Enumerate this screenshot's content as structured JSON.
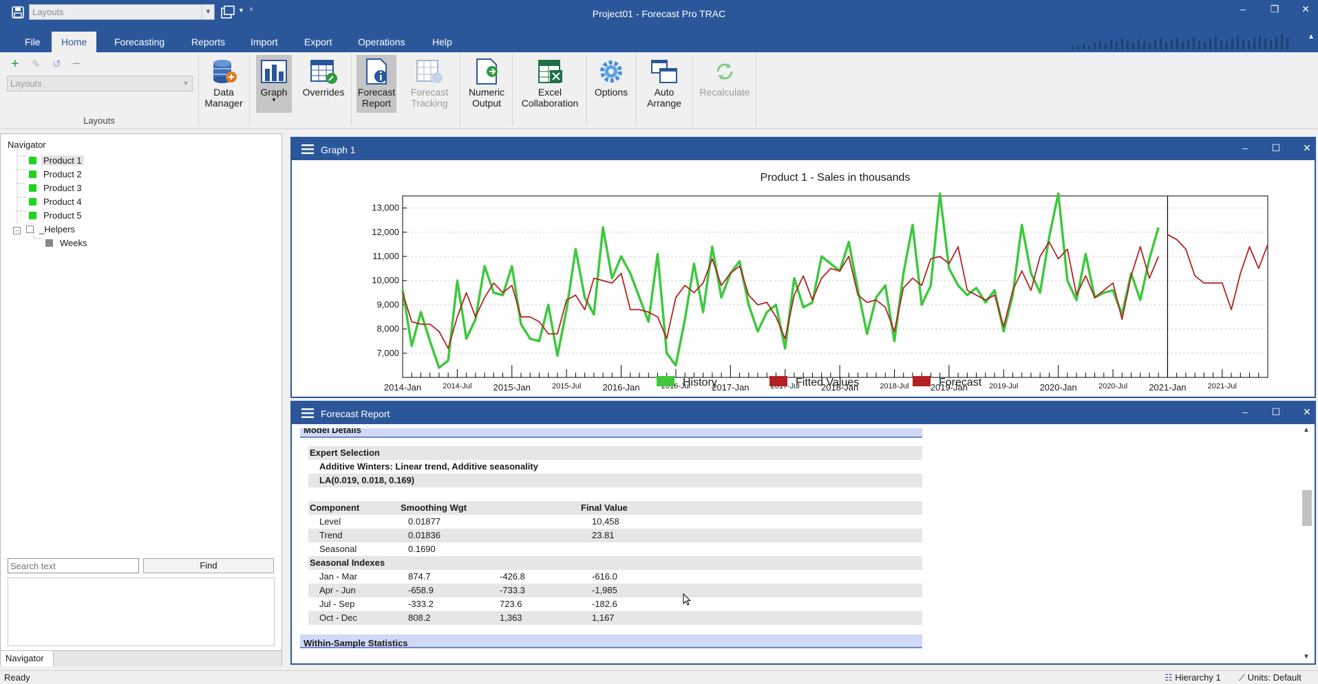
{
  "window": {
    "title": "Project01 - Forecast Pro TRAC",
    "layout_combo": "Layouts"
  },
  "menu": {
    "tabs": [
      "File",
      "Home",
      "Forecasting",
      "Reports",
      "Import",
      "Export",
      "Operations",
      "Help"
    ],
    "active": "Home"
  },
  "ribbon": {
    "layouts_combo_placeholder": "Layouts",
    "layouts_group_label": "Layouts",
    "buttons": {
      "data_manager": "Data\nManager",
      "graph": "Graph",
      "overrides": "Overrides",
      "forecast_report": "Forecast\nReport",
      "forecast_tracking": "Forecast\nTracking",
      "numeric_output": "Numeric\nOutput",
      "excel_collaboration": "Excel\nCollaboration",
      "options": "Options",
      "auto_arrange": "Auto\nArrange",
      "recalculate": "Recalculate"
    }
  },
  "navigator": {
    "title": "Navigator",
    "items": [
      {
        "label": "Product 1",
        "color": "#1fd41f",
        "selected": true
      },
      {
        "label": "Product 2",
        "color": "#1fd41f"
      },
      {
        "label": "Product 3",
        "color": "#1fd41f"
      },
      {
        "label": "Product 4",
        "color": "#1fd41f"
      },
      {
        "label": "Product 5",
        "color": "#1fd41f"
      },
      {
        "label": "_Helpers",
        "color": "#888888"
      },
      {
        "label": "Weeks",
        "color": "#888888"
      }
    ],
    "search_placeholder": "Search text",
    "find_label": "Find",
    "tab_label": "Navigator"
  },
  "graph_panel": {
    "title": "Graph 1"
  },
  "chart_data": {
    "type": "line",
    "title": "Product 1 - Sales in thousands",
    "ylim": [
      6000,
      13500
    ],
    "y_ticks": [
      "13,000",
      "12,000",
      "11,000",
      "10,000",
      "9,000",
      "8,000",
      "7,000"
    ],
    "y_tick_values": [
      13000,
      12000,
      11000,
      10000,
      9000,
      8000,
      7000
    ],
    "x_major_labels": [
      "2014-Jan",
      "2015-Jan",
      "2016-Jan",
      "2017-Jan",
      "2018-Jan",
      "2019-Jan",
      "2020-Jan",
      "2021-Jan"
    ],
    "x_minor_labels": [
      "2014-Jul",
      "2015-Jul",
      "2016-Jul",
      "2017-Jul",
      "2018-Jul",
      "2019-Jul",
      "2020-Jul",
      "2021-Jul"
    ],
    "x_start": "2014-Jan",
    "x_end": "2021-Sep",
    "forecast_start": "2021-Jan",
    "grid": true,
    "legend": "bottom",
    "colors": {
      "history": "#3ec83e",
      "fitted": "#b22222",
      "forecast": "#b22222"
    },
    "series": [
      {
        "name": "History",
        "values": [
          9600,
          7300,
          8700,
          7500,
          6400,
          6700,
          10000,
          7600,
          8400,
          10600,
          9500,
          9400,
          10600,
          8200,
          7600,
          7500,
          9000,
          6900,
          8800,
          11300,
          9300,
          8600,
          12200,
          10100,
          11000,
          10300,
          9300,
          8300,
          11100,
          7000,
          6500,
          8400,
          10700,
          8700,
          11400,
          9300,
          10300,
          10800,
          9000,
          7900,
          8700,
          9000,
          7200,
          10100,
          8900,
          9100,
          11000,
          10700,
          10400,
          11600,
          9600,
          7800,
          9300,
          9800,
          7500,
          10300,
          12300,
          9000,
          9800,
          13600,
          10500,
          9800,
          9400,
          9700,
          9100,
          9600,
          7900,
          9400,
          12300,
          10300,
          9500,
          11800,
          13600,
          10000,
          9200,
          11100,
          9300,
          9500,
          9600,
          8600,
          10300,
          9200,
          10900,
          12200
        ]
      },
      {
        "name": "Fitted Values",
        "values": [
          9500,
          8300,
          8200,
          8200,
          7900,
          7200,
          8500,
          9500,
          8500,
          9300,
          9900,
          9500,
          9800,
          8500,
          8500,
          8300,
          7800,
          7800,
          9200,
          9400,
          8800,
          10100,
          10000,
          9900,
          10300,
          8800,
          8800,
          8700,
          8500,
          7600,
          9300,
          9800,
          9500,
          9900,
          10900,
          9800,
          10300,
          10600,
          9400,
          9000,
          9100,
          8500,
          7600,
          9400,
          10200,
          9200,
          10100,
          10500,
          10400,
          11000,
          9400,
          9100,
          9200,
          8900,
          7900,
          9700,
          10100,
          9800,
          10900,
          11000,
          10700,
          11400,
          9600,
          9400,
          9200,
          9400,
          8100,
          9600,
          10400,
          9600,
          11000,
          11600,
          10900,
          11300,
          9400,
          10200,
          9300,
          9600,
          9900,
          8400,
          10200,
          11400,
          10100,
          11000
        ]
      },
      {
        "name": "Forecast",
        "values": [
          11900,
          11700,
          11300,
          10200,
          9900,
          9900,
          9900,
          8800,
          10300,
          11400,
          10500,
          11500
        ]
      }
    ]
  },
  "report_panel": {
    "title": "Forecast Report",
    "model_details_header": "Model Details",
    "expert_selection_label": "Expert Selection",
    "model_name": "Additive Winters: Linear trend, Additive seasonality",
    "model_params": "LA(0.019, 0.018, 0.169)",
    "component_table": {
      "headers": [
        "Component",
        "Smoothing Wgt",
        "Final Value"
      ],
      "rows": [
        [
          "Level",
          "0.01877",
          "10,458"
        ],
        [
          "Trend",
          "0.01836",
          "23.81"
        ],
        [
          "Seasonal",
          "0.1690",
          ""
        ]
      ]
    },
    "seasonal_indexes_label": "Seasonal Indexes",
    "seasonal_rows": [
      [
        "Jan - Mar",
        "874.7",
        "-426.8",
        "-616.0"
      ],
      [
        "Apr - Jun",
        "-658.9",
        "-733.3",
        "-1,985"
      ],
      [
        "Jul - Sep",
        "-333.2",
        "723.6",
        "-182.6"
      ],
      [
        "Oct - Dec",
        "808.2",
        "1,363",
        "1,167"
      ]
    ],
    "next_section_cut": "Within-Sample Statistics"
  },
  "statusbar": {
    "left": "Ready",
    "hierarchy": "Hierarchy 1",
    "units": "Units: Default"
  }
}
